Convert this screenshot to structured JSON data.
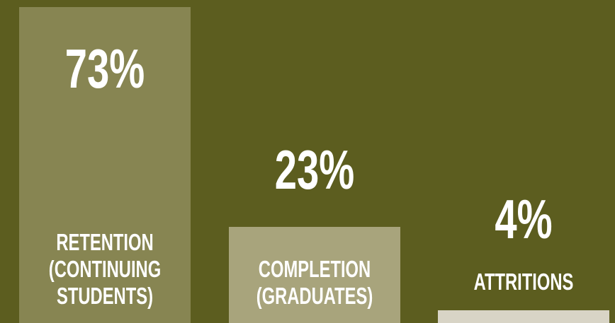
{
  "chart_data": {
    "type": "bar",
    "categories": [
      "RETENTION (CONTINUING STUDENTS)",
      "COMPLETION (GRADUATES)",
      "ATTRITIONS"
    ],
    "values": [
      73,
      23,
      4
    ],
    "value_labels": [
      "73%",
      "23%",
      "4%"
    ],
    "colors": [
      "#878552",
      "#a8a47c",
      "#d8d4c6"
    ],
    "background": "#5c5d1f"
  }
}
